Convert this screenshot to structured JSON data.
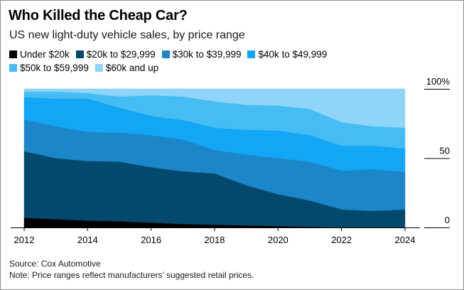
{
  "header": {
    "title": "Who Killed the Cheap Car?",
    "subtitle": "US new light-duty vehicle sales, by price range"
  },
  "legend": [
    {
      "label": "Under $20k",
      "color": "#000000"
    },
    {
      "label": "$20k to $29,999",
      "color": "#03496e"
    },
    {
      "label": "$30k to $39,999",
      "color": "#1b86c8"
    },
    {
      "label": "$40k to $49,999",
      "color": "#12a6f4"
    },
    {
      "label": "$50k to $59,999",
      "color": "#46bdf2"
    },
    {
      "label": "$60k and up",
      "color": "#8fd5f9"
    }
  ],
  "footer": {
    "source": "Source: Cox Automotive",
    "note": "Note: Price ranges reflect manufacturers’ suggested retail prices."
  },
  "chart_data": {
    "type": "area",
    "stacked": true,
    "title": "Who Killed the Cheap Car?",
    "subtitle": "US new light-duty vehicle sales, by price range",
    "x": [
      2012,
      2013,
      2014,
      2015,
      2016,
      2017,
      2018,
      2019,
      2020,
      2021,
      2022,
      2023,
      2024
    ],
    "xticks": [
      "2012",
      "2014",
      "2016",
      "2018",
      "2020",
      "2022",
      "2024"
    ],
    "yticks": [
      "0",
      "50",
      "100%"
    ],
    "ylim": [
      0,
      100
    ],
    "series": [
      {
        "name": "Under $20k",
        "color": "#000000",
        "values": [
          7,
          6,
          5,
          4.5,
          3.5,
          2.5,
          2,
          1.5,
          1,
          0.5,
          0,
          0,
          0
        ]
      },
      {
        "name": "$20k to $29,999",
        "color": "#03496e",
        "values": [
          48,
          44,
          43,
          43,
          40,
          38,
          37,
          29,
          23,
          19,
          13,
          12,
          13
        ]
      },
      {
        "name": "$30k to $39,999",
        "color": "#1b86c8",
        "values": [
          23,
          23,
          21,
          21,
          23,
          23,
          17,
          22,
          26,
          28,
          28,
          30,
          27
        ]
      },
      {
        "name": "$40k to $49,999",
        "color": "#12a6f4",
        "values": [
          16,
          20,
          24,
          18,
          14,
          14,
          16,
          18,
          20,
          19,
          18,
          17,
          17
        ]
      },
      {
        "name": "$50k to $59,999",
        "color": "#46bdf2",
        "values": [
          4,
          5,
          4,
          8,
          15,
          17,
          19,
          18,
          18,
          19,
          17,
          14,
          15
        ]
      },
      {
        "name": "$60k and up",
        "color": "#8fd5f9",
        "values": [
          2,
          2,
          3,
          5.5,
          4.5,
          5.5,
          9,
          11.5,
          12,
          14.5,
          24,
          27,
          28
        ]
      }
    ]
  }
}
